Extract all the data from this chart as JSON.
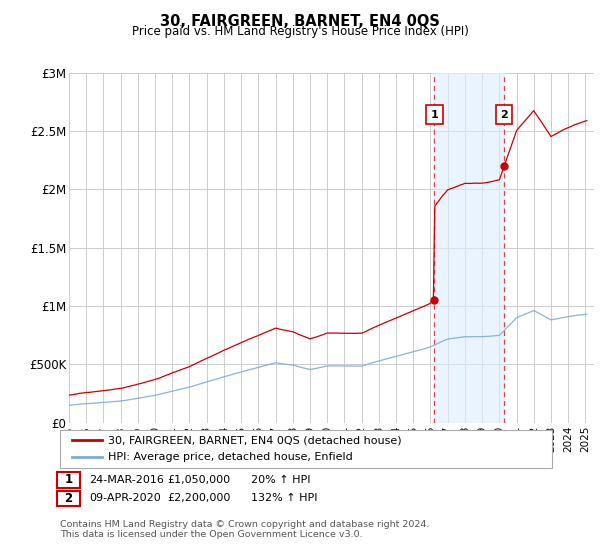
{
  "title": "30, FAIRGREEN, BARNET, EN4 0QS",
  "subtitle": "Price paid vs. HM Land Registry's House Price Index (HPI)",
  "legend_label1": "30, FAIRGREEN, BARNET, EN4 0QS (detached house)",
  "legend_label2": "HPI: Average price, detached house, Enfield",
  "annotation1_date": "24-MAR-2016",
  "annotation1_price": "£1,050,000",
  "annotation1_hpi": "20% ↑ HPI",
  "annotation1_year": 2016.23,
  "annotation1_value": 1050000,
  "annotation2_date": "09-APR-2020",
  "annotation2_price": "£2,200,000",
  "annotation2_hpi": "132% ↑ HPI",
  "annotation2_year": 2020.28,
  "annotation2_value": 2200000,
  "footer": "Contains HM Land Registry data © Crown copyright and database right 2024.\nThis data is licensed under the Open Government Licence v3.0.",
  "ylim": [
    0,
    3000000
  ],
  "yticks": [
    0,
    500000,
    1000000,
    1500000,
    2000000,
    2500000,
    3000000
  ],
  "ytick_labels": [
    "£0",
    "£500K",
    "£1M",
    "£1.5M",
    "£2M",
    "£2.5M",
    "£3M"
  ],
  "background_color": "#ffffff",
  "plot_bg_color": "#ffffff",
  "grid_color": "#cccccc",
  "line1_color": "#cc0000",
  "line2_color": "#7aabdc",
  "shade_color": "#ddeeff",
  "annotation_line_color": "#dd4444",
  "xlim_start": 1995.0,
  "xlim_end": 2025.5
}
